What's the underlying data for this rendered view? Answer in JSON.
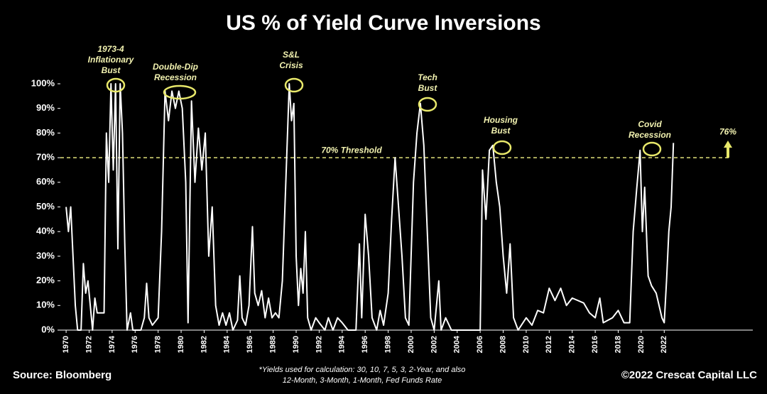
{
  "chart_data": {
    "type": "line",
    "title": "US % of Yield Curve Inversions",
    "x": [
      1970.0,
      1970.2,
      1970.4,
      1970.6,
      1970.8,
      1971.0,
      1971.3,
      1971.5,
      1971.7,
      1971.9,
      1972.1,
      1972.3,
      1972.5,
      1972.7,
      1973.0,
      1973.3,
      1973.5,
      1973.7,
      1973.9,
      1974.1,
      1974.3,
      1974.5,
      1974.7,
      1974.9,
      1975.1,
      1975.3,
      1975.6,
      1975.8,
      1976.5,
      1976.8,
      1977.0,
      1977.2,
      1977.5,
      1978.0,
      1978.3,
      1978.6,
      1978.9,
      1979.2,
      1979.5,
      1979.8,
      1980.1,
      1980.4,
      1980.6,
      1980.9,
      1981.2,
      1981.5,
      1981.8,
      1982.1,
      1982.4,
      1982.7,
      1983.0,
      1983.3,
      1983.6,
      1983.9,
      1984.2,
      1984.5,
      1984.9,
      1985.1,
      1985.3,
      1985.6,
      1985.9,
      1986.2,
      1986.4,
      1986.7,
      1987.0,
      1987.3,
      1987.6,
      1987.9,
      1988.2,
      1988.5,
      1988.8,
      1989.1,
      1989.4,
      1989.6,
      1989.8,
      1990.0,
      1990.2,
      1990.4,
      1990.6,
      1990.8,
      1991.0,
      1991.3,
      1991.7,
      1992.0,
      1992.5,
      1992.8,
      1993.2,
      1993.6,
      1994.0,
      1994.5,
      1995.2,
      1995.5,
      1995.7,
      1996.0,
      1996.3,
      1996.6,
      1997.0,
      1997.3,
      1997.6,
      1998.0,
      1998.3,
      1998.6,
      1998.9,
      1999.2,
      1999.5,
      1999.8,
      2000.2,
      2000.5,
      2000.8,
      2001.1,
      2001.4,
      2001.7,
      2002.0,
      2002.4,
      2002.6,
      2003.0,
      2003.5,
      2006.0,
      2006.2,
      2006.5,
      2006.8,
      2007.1,
      2007.4,
      2007.7,
      2008.0,
      2008.3,
      2008.6,
      2008.9,
      2009.3,
      2010.0,
      2010.5,
      2011.0,
      2011.5,
      2012.0,
      2012.5,
      2013.0,
      2013.5,
      2014.0,
      2015.0,
      2015.5,
      2016.0,
      2016.4,
      2016.7,
      2017.5,
      2018.0,
      2018.5,
      2019.0,
      2019.3,
      2019.6,
      2019.9,
      2020.1,
      2020.3,
      2020.6,
      2020.9,
      2021.3,
      2021.8,
      2022.0,
      2022.2,
      2022.4,
      2022.6,
      2022.8
    ],
    "series": [
      {
        "color": "#ffffff",
        "values": [
          50,
          40,
          50,
          30,
          10,
          0,
          0,
          27,
          15,
          20,
          10,
          0,
          13,
          7,
          7,
          7,
          80,
          60,
          100,
          65,
          100,
          33,
          100,
          80,
          35,
          0,
          7,
          0,
          0,
          5,
          19,
          5,
          2,
          5,
          40,
          97,
          85,
          97,
          90,
          97,
          90,
          60,
          3,
          93,
          60,
          82,
          65,
          80,
          30,
          50,
          10,
          2,
          7,
          2,
          7,
          0,
          4,
          22,
          5,
          2,
          10,
          42,
          15,
          10,
          16,
          5,
          13,
          5,
          7,
          5,
          20,
          60,
          100,
          85,
          92,
          30,
          10,
          25,
          15,
          40,
          5,
          0,
          5,
          3,
          0,
          5,
          0,
          5,
          3,
          0,
          0,
          35,
          5,
          47,
          30,
          5,
          0,
          8,
          2,
          15,
          45,
          70,
          50,
          30,
          5,
          2,
          60,
          80,
          92,
          75,
          40,
          5,
          0,
          20,
          0,
          5,
          0,
          0,
          65,
          45,
          73,
          75,
          60,
          50,
          30,
          15,
          35,
          5,
          0,
          5,
          2,
          8,
          7,
          17,
          12,
          17,
          10,
          13,
          11,
          7,
          5,
          13,
          3,
          5,
          8,
          3,
          3,
          40,
          57,
          73,
          40,
          58,
          22,
          18,
          15,
          5,
          3,
          20,
          40,
          50,
          76
        ]
      }
    ],
    "xlim": [
      1969.5,
      2029.7
    ],
    "xticks": [
      1970,
      1972,
      1974,
      1976,
      1978,
      1980,
      1982,
      1984,
      1986,
      1988,
      1990,
      1992,
      1994,
      1996,
      1998,
      2000,
      2002,
      2004,
      2006,
      2008,
      2010,
      2012,
      2014,
      2016,
      2018,
      2020,
      2022
    ],
    "ylim": [
      0,
      100
    ],
    "yticks": [
      {
        "value": 0,
        "label": "0%"
      },
      {
        "value": 10,
        "label": "10%"
      },
      {
        "value": 20,
        "label": "20%"
      },
      {
        "value": 30,
        "label": "30%"
      },
      {
        "value": 40,
        "label": "40%"
      },
      {
        "value": 50,
        "label": "50%"
      },
      {
        "value": 60,
        "label": "60%"
      },
      {
        "value": 70,
        "label": "70%"
      },
      {
        "value": 80,
        "label": "80%"
      },
      {
        "value": 90,
        "label": "90%"
      },
      {
        "value": 100,
        "label": "100%"
      }
    ],
    "threshold": {
      "value": 70,
      "label": "70% Threshold",
      "color": "#e0e07a"
    },
    "latest": {
      "value": 76,
      "label": "76%"
    },
    "annotations": [
      [
        "1973-4",
        "Inflationary",
        "Bust"
      ],
      [
        "Double-Dip",
        "Recession"
      ],
      [
        "S&L",
        "Crisis"
      ],
      [
        "Tech",
        "Bust"
      ],
      [
        "Housing",
        "Bust"
      ],
      [
        "Covid",
        "Recession"
      ]
    ],
    "source": "Source: Bloomberg",
    "footnote": [
      "*Yields used for calculation: 30, 10, 7, 5, 3, 2-Year, and also",
      "12-Month, 3-Month, 1-Month, Fed Funds Rate"
    ],
    "copyright": "©2022 Crescat Capital LLC"
  }
}
